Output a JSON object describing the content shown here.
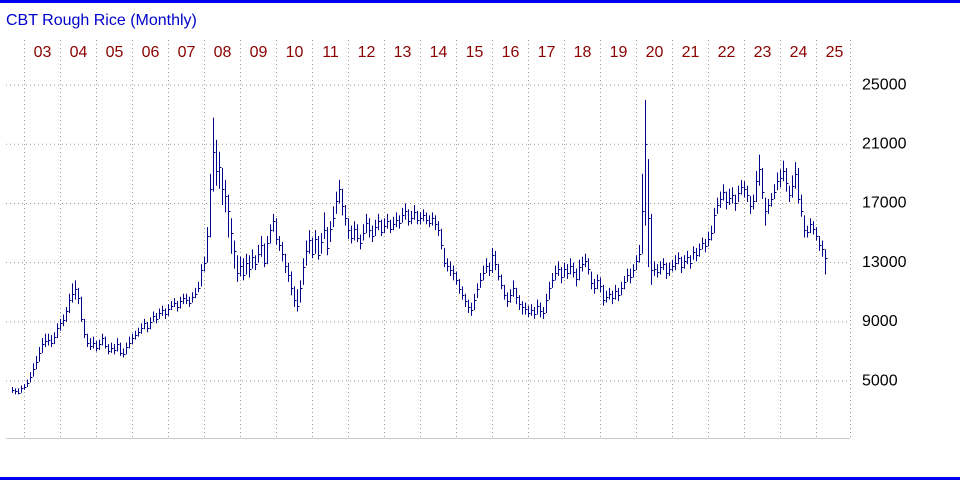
{
  "chart_data": {
    "type": "ohlc",
    "title": "CBT Rough Rice (Monthly)",
    "color": "#00008b",
    "grid": true,
    "xlim": [
      -2,
      279.3
    ],
    "xticks": [
      {
        "value": 4,
        "label": "03"
      },
      {
        "value": 16,
        "label": "04"
      },
      {
        "value": 28,
        "label": "05"
      },
      {
        "value": 40,
        "label": "06"
      },
      {
        "value": 52,
        "label": "07"
      },
      {
        "value": 64,
        "label": "08"
      },
      {
        "value": 76,
        "label": "09"
      },
      {
        "value": 88,
        "label": "10"
      },
      {
        "value": 100,
        "label": "11"
      },
      {
        "value": 112,
        "label": "12"
      },
      {
        "value": 124,
        "label": "13"
      },
      {
        "value": 136,
        "label": "14"
      },
      {
        "value": 148,
        "label": "15"
      },
      {
        "value": 160,
        "label": "16"
      },
      {
        "value": 172,
        "label": "17"
      },
      {
        "value": 184,
        "label": "18"
      },
      {
        "value": 196,
        "label": "19"
      },
      {
        "value": 208,
        "label": "20"
      },
      {
        "value": 220,
        "label": "21"
      },
      {
        "value": 232,
        "label": "22"
      },
      {
        "value": 244,
        "label": "23"
      },
      {
        "value": 256,
        "label": "24"
      },
      {
        "value": 268,
        "label": "25"
      }
    ],
    "ylim": [
      1150,
      28050
    ],
    "yticks": [
      5000,
      9000,
      13000,
      17000,
      21000,
      25000
    ],
    "high": [
      4600,
      4500,
      4500,
      4700,
      4800,
      5100,
      5600,
      6200,
      6700,
      7300,
      7900,
      8200,
      8200,
      8100,
      8300,
      8900,
      9200,
      9500,
      10000,
      10900,
      11600,
      11800,
      11300,
      10700,
      9200,
      8200,
      7900,
      8000,
      7700,
      7800,
      8200,
      8000,
      7500,
      7600,
      7500,
      7900,
      7600,
      7200,
      7600,
      8000,
      8200,
      8400,
      8600,
      8900,
      9200,
      9000,
      9300,
      9700,
      9600,
      9900,
      10100,
      9900,
      10200,
      10400,
      10600,
      10400,
      10700,
      10900,
      10900,
      10700,
      11000,
      11300,
      11700,
      12900,
      13400,
      15400,
      19000,
      22800,
      21300,
      20500,
      19400,
      18600,
      17600,
      16000,
      14500,
      13500,
      13400,
      13300,
      13600,
      13500,
      13900,
      13500,
      14200,
      14800,
      14300,
      14800,
      15600,
      16300,
      16000,
      14800,
      14400,
      13600,
      13000,
      12400,
      11400,
      11200,
      11800,
      13300,
      14500,
      15200,
      14700,
      15200,
      14800,
      15000,
      16400,
      15400,
      15800,
      16800,
      17800,
      18600,
      18000,
      16900,
      16000,
      15500,
      15800,
      15600,
      14900,
      15600,
      16300,
      16000,
      15500,
      15900,
      16300,
      15900,
      16000,
      16300,
      15900,
      16100,
      16400,
      16200,
      16700,
      17000,
      16600,
      16500,
      16900,
      16500,
      16400,
      16600,
      16400,
      16200,
      16400,
      16200,
      15800,
      15300,
      14000,
      13300,
      13100,
      12800,
      12400,
      11900,
      11400,
      10900,
      10500,
      10300,
      10900,
      11600,
      12300,
      12800,
      13300,
      13000,
      14000,
      13800,
      12900,
      12200,
      11500,
      11000,
      11200,
      11800,
      11300,
      10800,
      10400,
      10300,
      10100,
      10200,
      10000,
      10500,
      10300,
      10000,
      10900,
      11700,
      12300,
      12800,
      13100,
      12700,
      13000,
      12900,
      13300,
      13000,
      12600,
      13200,
      13400,
      13600,
      13300,
      12400,
      11900,
      12200,
      12000,
      11500,
      11100,
      11300,
      11100,
      11500,
      11300,
      11700,
      12100,
      12600,
      12600,
      12900,
      13500,
      14200,
      19000,
      24000,
      20000,
      16300,
      13100,
      12900,
      13100,
      13300,
      13000,
      13000,
      13200,
      13500,
      13700,
      13400,
      13500,
      13800,
      13500,
      14100,
      14000,
      14300,
      14700,
      14600,
      15100,
      15500,
      16700,
      17400,
      17800,
      18300,
      17800,
      18000,
      18100,
      17600,
      18200,
      18600,
      18500,
      18200,
      17500,
      17600,
      19200,
      20300,
      19400,
      17400,
      17300,
      17700,
      18300,
      19100,
      19300,
      19900,
      19400,
      18200,
      18900,
      19800,
      19400,
      17600,
      16200,
      15500,
      16000,
      15800,
      15400,
      14800,
      14500,
      13900
    ],
    "low": [
      4200,
      4100,
      4100,
      4200,
      4400,
      4600,
      4900,
      5300,
      5800,
      6300,
      6900,
      7300,
      7400,
      7300,
      7500,
      7900,
      8400,
      8700,
      9000,
      9600,
      10300,
      10500,
      10200,
      9000,
      7900,
      7300,
      7100,
      7200,
      7000,
      7100,
      7400,
      7200,
      6800,
      6900,
      6800,
      7000,
      6700,
      6600,
      6800,
      7200,
      7500,
      7800,
      8000,
      8200,
      8500,
      8300,
      8500,
      9000,
      8900,
      9200,
      9400,
      9200,
      9400,
      9800,
      10000,
      9700,
      9900,
      10200,
      10200,
      10000,
      10300,
      10600,
      11000,
      11400,
      12400,
      13000,
      14700,
      17800,
      18200,
      18000,
      16900,
      16400,
      14700,
      13600,
      12600,
      11700,
      12100,
      11800,
      12200,
      12000,
      12600,
      12500,
      13000,
      13400,
      12700,
      12900,
      14300,
      15100,
      14200,
      13800,
      13100,
      12300,
      11700,
      10800,
      10000,
      9700,
      10300,
      11500,
      12800,
      13600,
      13300,
      13600,
      13200,
      13600,
      14600,
      13500,
      14400,
      15400,
      16300,
      17000,
      16200,
      15500,
      14600,
      14300,
      14500,
      14400,
      13900,
      14500,
      15000,
      14700,
      14400,
      14800,
      15200,
      14800,
      15000,
      15300,
      15000,
      15200,
      15400,
      15300,
      15700,
      15900,
      15500,
      15600,
      15900,
      15600,
      15600,
      15800,
      15600,
      15400,
      15500,
      15200,
      14800,
      13900,
      12700,
      12400,
      12100,
      11800,
      11500,
      10900,
      10500,
      10000,
      9600,
      9400,
      9800,
      10600,
      11300,
      11800,
      12300,
      12100,
      12300,
      12500,
      11800,
      11200,
      10500,
      10000,
      10300,
      10700,
      10200,
      9800,
      9500,
      9500,
      9300,
      9400,
      9200,
      9500,
      9300,
      9200,
      9600,
      10500,
      11300,
      11800,
      12100,
      11600,
      12000,
      11900,
      12200,
      12000,
      11400,
      11800,
      12400,
      12700,
      12200,
      11200,
      10900,
      11200,
      11000,
      10100,
      10300,
      10500,
      10200,
      10500,
      10400,
      10800,
      11200,
      11700,
      11600,
      12000,
      12500,
      13000,
      13600,
      15500,
      12700,
      11500,
      12100,
      12000,
      12200,
      12500,
      11900,
      12100,
      12400,
      12500,
      12900,
      12300,
      12600,
      12900,
      12600,
      13200,
      13100,
      13400,
      13900,
      13700,
      14100,
      14500,
      15000,
      16300,
      16700,
      17200,
      16600,
      16900,
      17000,
      16500,
      17100,
      17600,
      17400,
      17100,
      16300,
      16600,
      17100,
      18200,
      17300,
      15500,
      16300,
      16800,
      17300,
      17900,
      18100,
      18500,
      17800,
      17100,
      17400,
      18000,
      17000,
      16100,
      14700,
      14700,
      15000,
      14900,
      14500,
      13800,
      13400,
      12200
    ],
    "close": [
      4400,
      4300,
      4200,
      4500,
      4600,
      4900,
      5300,
      5800,
      6300,
      6900,
      7500,
      7700,
      7800,
      7600,
      8000,
      8600,
      8900,
      9100,
      9700,
      10500,
      10900,
      11200,
      10600,
      9200,
      8200,
      7600,
      7400,
      7600,
      7200,
      7500,
      7900,
      7400,
      7000,
      7200,
      7100,
      7500,
      6900,
      6800,
      7300,
      7600,
      7900,
      8100,
      8300,
      8600,
      8900,
      8600,
      9000,
      9400,
      9200,
      9600,
      9800,
      9500,
      9900,
      10100,
      10300,
      10000,
      10400,
      10600,
      10500,
      10300,
      10700,
      10900,
      11300,
      12500,
      13000,
      14800,
      18000,
      20500,
      19200,
      19500,
      18000,
      17500,
      16500,
      15000,
      13800,
      12300,
      12800,
      12200,
      13000,
      12600,
      13400,
      12900,
      13600,
      14200,
      13000,
      14300,
      15200,
      15800,
      14600,
      14200,
      13600,
      12800,
      12200,
      11300,
      10500,
      10100,
      11300,
      12700,
      13800,
      14500,
      13600,
      14600,
      13500,
      14400,
      15200,
      14000,
      15300,
      16000,
      17200,
      18000,
      16800,
      16000,
      15200,
      14700,
      15300,
      14700,
      14300,
      15000,
      15700,
      15200,
      14800,
      15400,
      15800,
      15100,
      15500,
      15800,
      15300,
      15600,
      15900,
      15700,
      16200,
      16500,
      15800,
      16000,
      16400,
      15900,
      16000,
      16200,
      15900,
      15700,
      16000,
      15600,
      15200,
      14200,
      13000,
      12800,
      12500,
      12300,
      11800,
      11200,
      10800,
      10400,
      10000,
      9800,
      10500,
      11200,
      11800,
      12300,
      12800,
      12500,
      13500,
      12900,
      12100,
      11500,
      10800,
      10400,
      10800,
      11300,
      10700,
      10200,
      10000,
      9900,
      9600,
      9800,
      9500,
      10100,
      9700,
      9600,
      10500,
      11300,
      11800,
      12300,
      12600,
      12000,
      12600,
      12300,
      12800,
      12400,
      11900,
      12700,
      12900,
      13100,
      12600,
      11600,
      11300,
      11800,
      11400,
      10500,
      10700,
      10900,
      10600,
      11100,
      10800,
      11300,
      11700,
      12200,
      12000,
      12500,
      13100,
      13600,
      16500,
      21000,
      16000,
      12500,
      12600,
      12400,
      12700,
      12900,
      12300,
      12600,
      12800,
      13000,
      13300,
      12700,
      13100,
      13400,
      13000,
      13700,
      13500,
      13900,
      14300,
      14100,
      14600,
      15000,
      16200,
      16900,
      17300,
      17800,
      17100,
      17400,
      17600,
      17000,
      17700,
      18100,
      18000,
      17600,
      16800,
      17200,
      18500,
      19300,
      17800,
      16500,
      16900,
      17300,
      17800,
      18500,
      18700,
      19200,
      18400,
      17600,
      18200,
      19000,
      17300,
      16500,
      15200,
      15100,
      15600,
      15300,
      14800,
      14200,
      13900,
      13300
    ]
  }
}
